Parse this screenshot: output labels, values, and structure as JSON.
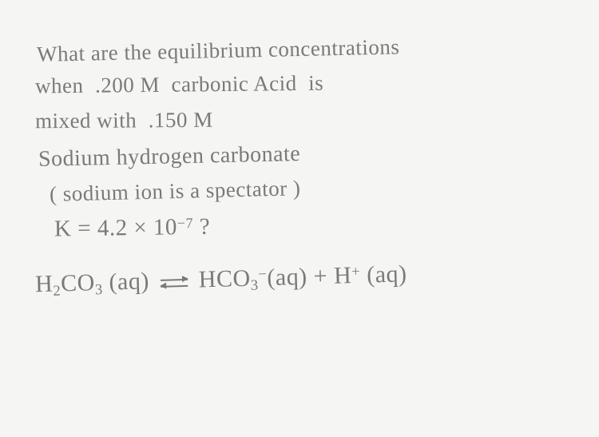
{
  "text_color": "#7a7a78",
  "background_color": "#f5f5f4",
  "font_family": "handwritten",
  "lines": {
    "l1": "What are the equilibrium concentrations",
    "l2a": "when  .200 M  carbonic Acid  is",
    "l3": "mixed with  .150 M",
    "l4": "Sodium hydrogen carbonate",
    "l5": "( sodium ion is a spectator )",
    "l6_pre": "K = 4.2 × 10",
    "l6_exp": "−7",
    "l6_post": " ?",
    "eq": {
      "lhs_base": "H",
      "lhs_sub1": "2",
      "lhs_mid": "CO",
      "lhs_sub2": "3",
      "lhs_state": " (aq)",
      "rhs1_base": "HCO",
      "rhs1_sub": "3",
      "rhs1_charge": "−",
      "rhs1_state": "(aq)",
      "plus": " + ",
      "rhs2_base": "H",
      "rhs2_charge": "+",
      "rhs2_state": " (aq)"
    }
  }
}
